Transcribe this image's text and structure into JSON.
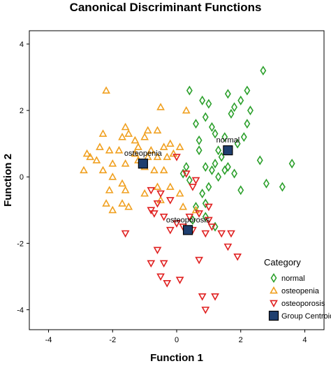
{
  "chart_data": {
    "type": "scatter",
    "title": "Canonical Discriminant Functions",
    "xlabel": "Function 1",
    "ylabel": "Function 2",
    "xlim": [
      -4.6,
      4.6
    ],
    "ylim": [
      -4.6,
      4.4
    ],
    "xticks": [
      -4,
      -2,
      0,
      2,
      4
    ],
    "yticks": [
      -4,
      -2,
      0,
      2,
      4
    ],
    "grid": false,
    "legend": {
      "title": "Category",
      "placement": "bottom-right",
      "entries": [
        {
          "label": "normal",
          "marker": "diamond",
          "color": "#2ca02c"
        },
        {
          "label": "osteopenia",
          "marker": "triangle-up",
          "color": "#f0a020"
        },
        {
          "label": "osteoporosis",
          "marker": "triangle-down",
          "color": "#e02020"
        },
        {
          "label": "Group Centroid",
          "marker": "square",
          "color": "#1f3f6f"
        }
      ]
    },
    "series": [
      {
        "name": "normal",
        "marker": "diamond",
        "color": "#2ca02c",
        "points": [
          [
            2.7,
            3.2
          ],
          [
            2.2,
            2.6
          ],
          [
            0.4,
            2.6
          ],
          [
            1.6,
            2.5
          ],
          [
            0.8,
            2.3
          ],
          [
            2.0,
            2.3
          ],
          [
            1.0,
            2.2
          ],
          [
            1.8,
            2.1
          ],
          [
            2.3,
            2.0
          ],
          [
            1.7,
            1.9
          ],
          [
            0.9,
            1.8
          ],
          [
            1.5,
            1.2
          ],
          [
            1.2,
            1.3
          ],
          [
            0.6,
            1.6
          ],
          [
            2.2,
            1.6
          ],
          [
            1.1,
            1.5
          ],
          [
            0.7,
            1.1
          ],
          [
            2.1,
            1.2
          ],
          [
            1.9,
            1.0
          ],
          [
            1.3,
            0.8
          ],
          [
            2.6,
            0.5
          ],
          [
            3.6,
            0.4
          ],
          [
            1.4,
            0.6
          ],
          [
            1.2,
            0.4
          ],
          [
            1.6,
            0.3
          ],
          [
            1.1,
            0.2
          ],
          [
            0.9,
            0.3
          ],
          [
            1.5,
            0.2
          ],
          [
            1.3,
            0.0
          ],
          [
            2.8,
            -0.2
          ],
          [
            1.0,
            -0.3
          ],
          [
            3.3,
            -0.3
          ],
          [
            2.0,
            -0.4
          ],
          [
            0.8,
            -0.5
          ],
          [
            1.8,
            0.1
          ],
          [
            0.2,
            0.1
          ],
          [
            0.4,
            -0.1
          ],
          [
            0.9,
            -0.8
          ],
          [
            0.6,
            -0.9
          ],
          [
            0.5,
            -1.3
          ],
          [
            0.9,
            -1.2
          ],
          [
            1.2,
            -1.5
          ],
          [
            0.7,
            0.8
          ],
          [
            0.3,
            0.3
          ]
        ]
      },
      {
        "name": "osteopenia",
        "marker": "triangle-up",
        "color": "#f0a020",
        "points": [
          [
            -2.2,
            2.6
          ],
          [
            -0.5,
            2.1
          ],
          [
            0.3,
            2.0
          ],
          [
            -1.6,
            1.5
          ],
          [
            -2.3,
            1.3
          ],
          [
            -1.5,
            1.3
          ],
          [
            -0.9,
            1.4
          ],
          [
            -1.7,
            1.2
          ],
          [
            -1.3,
            1.1
          ],
          [
            -0.6,
            1.4
          ],
          [
            -1.0,
            1.2
          ],
          [
            -2.7,
            0.6
          ],
          [
            -2.4,
            0.9
          ],
          [
            -2.1,
            0.8
          ],
          [
            -1.8,
            0.8
          ],
          [
            -1.2,
            0.9
          ],
          [
            -0.8,
            0.8
          ],
          [
            -0.4,
            0.9
          ],
          [
            -0.2,
            1.0
          ],
          [
            0.1,
            0.9
          ],
          [
            -2.8,
            0.7
          ],
          [
            -2.5,
            0.5
          ],
          [
            -2.0,
            0.4
          ],
          [
            -1.6,
            0.4
          ],
          [
            -1.3,
            0.7
          ],
          [
            -0.9,
            0.6
          ],
          [
            -0.6,
            0.6
          ],
          [
            -0.3,
            0.6
          ],
          [
            -2.9,
            0.2
          ],
          [
            -2.3,
            0.2
          ],
          [
            -2.0,
            0.0
          ],
          [
            -1.0,
            0.3
          ],
          [
            -0.7,
            0.2
          ],
          [
            -0.4,
            0.2
          ],
          [
            -1.7,
            -0.2
          ],
          [
            -1.6,
            -0.4
          ],
          [
            -2.1,
            -0.4
          ],
          [
            -1.5,
            -0.9
          ],
          [
            -1.0,
            -0.5
          ],
          [
            -0.6,
            -0.3
          ],
          [
            -0.2,
            -0.3
          ],
          [
            0.1,
            -0.5
          ],
          [
            -2.2,
            -0.8
          ],
          [
            -2.0,
            -1.0
          ],
          [
            -1.7,
            -0.8
          ],
          [
            -0.5,
            -0.7
          ],
          [
            0.2,
            -0.9
          ],
          [
            0.6,
            -1.0
          ],
          [
            -0.1,
            0.7
          ],
          [
            -1.2,
            0.5
          ]
        ]
      },
      {
        "name": "osteoporosis",
        "marker": "triangle-down",
        "color": "#e02020",
        "points": [
          [
            -0.8,
            -0.4
          ],
          [
            -0.5,
            -0.5
          ],
          [
            0.0,
            0.6
          ],
          [
            0.3,
            0.1
          ],
          [
            0.6,
            -0.1
          ],
          [
            1.0,
            -0.9
          ],
          [
            -0.6,
            -0.8
          ],
          [
            -0.2,
            -0.7
          ],
          [
            -0.8,
            -1.0
          ],
          [
            -0.7,
            -1.1
          ],
          [
            -0.4,
            -1.2
          ],
          [
            0.4,
            -1.2
          ],
          [
            0.7,
            -1.1
          ],
          [
            1.0,
            -1.3
          ],
          [
            1.1,
            -1.5
          ],
          [
            0.2,
            -1.5
          ],
          [
            0.5,
            -1.6
          ],
          [
            0.9,
            -1.7
          ],
          [
            1.4,
            -1.7
          ],
          [
            1.7,
            -1.7
          ],
          [
            -1.6,
            -1.7
          ],
          [
            -0.2,
            -1.6
          ],
          [
            -0.6,
            -2.2
          ],
          [
            1.6,
            -2.1
          ],
          [
            -0.4,
            -2.6
          ],
          [
            0.7,
            -2.5
          ],
          [
            1.9,
            -2.4
          ],
          [
            -0.8,
            -2.6
          ],
          [
            -0.5,
            -3.0
          ],
          [
            0.1,
            -3.1
          ],
          [
            -0.3,
            -3.2
          ],
          [
            0.8,
            -3.6
          ],
          [
            1.2,
            -3.6
          ],
          [
            0.9,
            -4.0
          ],
          [
            0.0,
            -1.4
          ],
          [
            0.5,
            -0.3
          ]
        ]
      },
      {
        "name": "Group Centroid",
        "marker": "square",
        "color": "#1f3f6f",
        "points": [
          [
            1.6,
            0.8,
            "normal"
          ],
          [
            -1.05,
            0.4,
            "osteopenia"
          ],
          [
            0.35,
            -1.6,
            "osteoporosis"
          ]
        ]
      }
    ]
  }
}
